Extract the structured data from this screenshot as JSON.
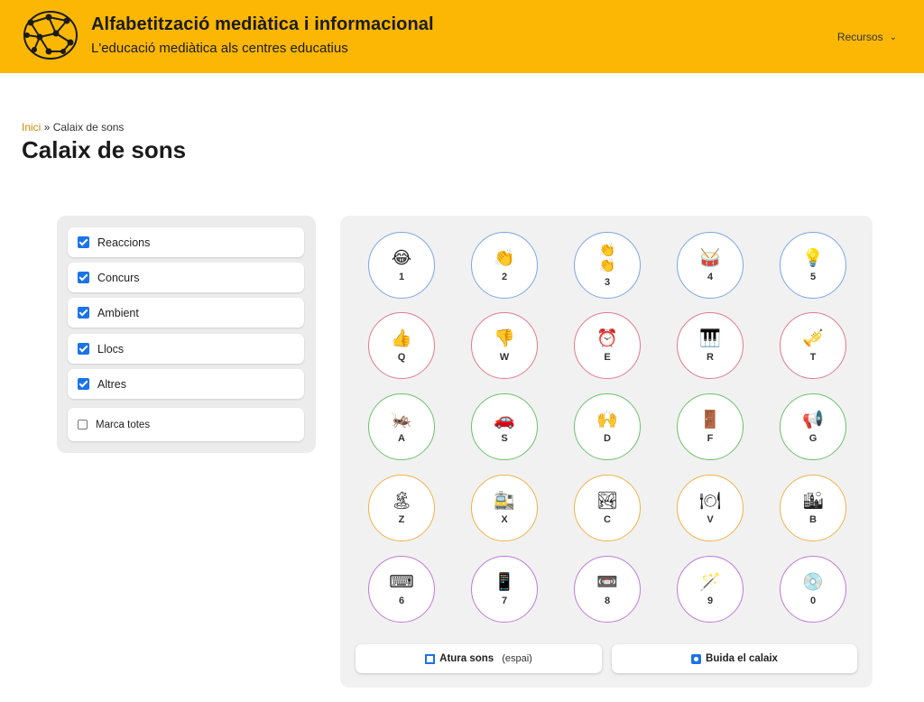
{
  "header": {
    "title": "Alfabetització mediàtica i informacional",
    "subtitle": "L'educació mediàtica als centres educatius",
    "menu_label": "Recursos",
    "logo_icon": "network-brain-logo-icon",
    "background": "#fbb703"
  },
  "breadcrumb": {
    "home": "Inici",
    "separator": "»",
    "current": "Calaix de sons"
  },
  "page_title": "Calaix de sons",
  "filters": [
    {
      "label": "Reaccions",
      "checked": true
    },
    {
      "label": "Concurs",
      "checked": true
    },
    {
      "label": "Ambient",
      "checked": true
    },
    {
      "label": "Llocs",
      "checked": true
    },
    {
      "label": "Altres",
      "checked": true
    },
    {
      "label": "Marca totes",
      "checked": false
    }
  ],
  "keys": [
    {
      "key": "1",
      "emoji": "😂",
      "icon": "laughing-face-icon"
    },
    {
      "key": "2",
      "emoji": "👏",
      "icon": "clapping-hands-icon"
    },
    {
      "key": "3",
      "emoji": "👏👏",
      "icon": "double-clapping-icon"
    },
    {
      "key": "4",
      "emoji": "🥁",
      "icon": "drum-icon"
    },
    {
      "key": "5",
      "emoji": "💡",
      "icon": "light-bulb-icon"
    },
    {
      "key": "Q",
      "emoji": "👍",
      "icon": "thumbs-up-icon"
    },
    {
      "key": "W",
      "emoji": "👎",
      "icon": "thumbs-down-icon"
    },
    {
      "key": "E",
      "emoji": "⏰",
      "icon": "alarm-clock-icon"
    },
    {
      "key": "R",
      "emoji": "🎹",
      "icon": "piano-icon"
    },
    {
      "key": "T",
      "emoji": "🎺",
      "icon": "trumpet-icon"
    },
    {
      "key": "A",
      "emoji": "🦗",
      "icon": "cricket-icon"
    },
    {
      "key": "S",
      "emoji": "🚗",
      "icon": "car-icon"
    },
    {
      "key": "D",
      "emoji": "🙌",
      "icon": "raised-hands-icon"
    },
    {
      "key": "F",
      "emoji": "🚪",
      "icon": "door-icon"
    },
    {
      "key": "G",
      "emoji": "📢",
      "icon": "megaphone-icon"
    },
    {
      "key": "Z",
      "emoji": "🏝",
      "icon": "beach-icon"
    },
    {
      "key": "X",
      "emoji": "🚉",
      "icon": "train-station-icon"
    },
    {
      "key": "C",
      "emoji": "🏞",
      "icon": "landscape-icon"
    },
    {
      "key": "V",
      "emoji": "🍽",
      "icon": "restaurant-icon"
    },
    {
      "key": "B",
      "emoji": "🏙",
      "icon": "city-icon"
    },
    {
      "key": "6",
      "emoji": "⌨",
      "icon": "keyboard-icon"
    },
    {
      "key": "7",
      "emoji": "📱",
      "icon": "phone-icon"
    },
    {
      "key": "8",
      "emoji": "📼",
      "icon": "videocassette-icon"
    },
    {
      "key": "9",
      "emoji": "🪄",
      "icon": "magic-wand-icon"
    },
    {
      "key": "0",
      "emoji": "💿",
      "icon": "disc-icon"
    }
  ],
  "actions": {
    "stop_label": "Atura sons",
    "stop_hint": "(espai)",
    "clear_label": "Buida el calaix"
  },
  "colors": {
    "row1": "#7aa6e4",
    "row2": "#e07a91",
    "row3": "#6cc06c",
    "row4": "#f0b24a",
    "row5": "#c07ad8",
    "checkbox": "#1a73e8",
    "breadcrumb_link": "#d28a0a"
  }
}
